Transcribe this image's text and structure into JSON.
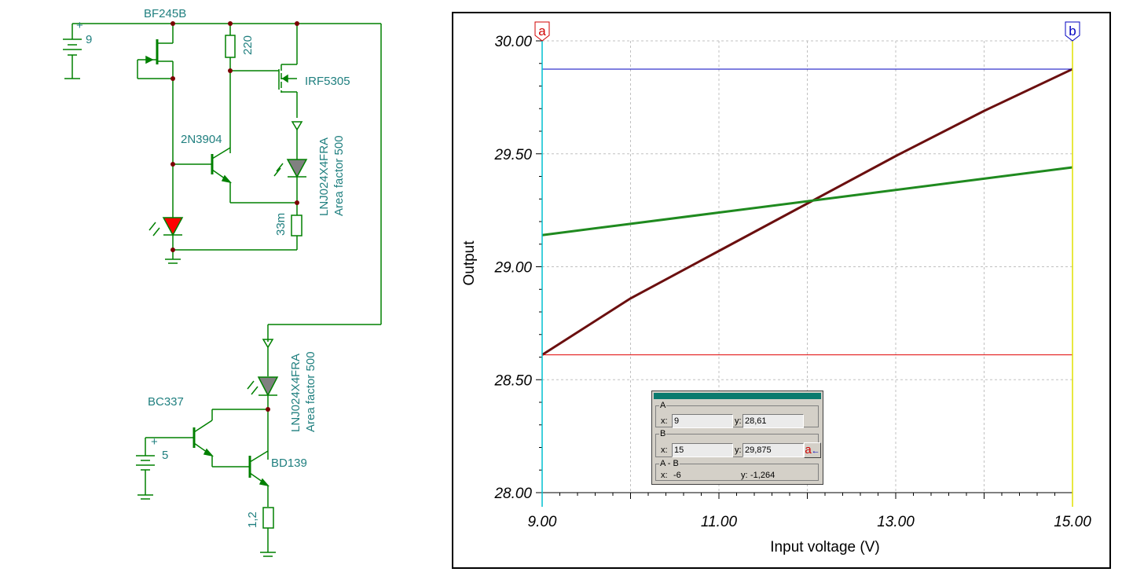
{
  "schematic": {
    "battery_top_label": "9",
    "battery_bottom_label": "5",
    "jfet_label": "BF245B",
    "resistor_top_label": "220",
    "mosfet_label": "IRF5305",
    "transistor_mid_label": "2N3904",
    "led_top_label_line1": "LNJ024X4FRA",
    "led_top_label_line2": "Area factor 500",
    "resistor_sense_label": "33m",
    "led_bottom_label_line1": "LNJ024X4FRA",
    "led_bottom_label_line2": "Area factor 500",
    "transistor_bc_label": "BC337",
    "transistor_bd_label": "BD139",
    "resistor_bottom_label": "1,2",
    "plus_sign": "+"
  },
  "plot": {
    "cursor_a_label": "a",
    "cursor_b_label": "b",
    "colors": {
      "series_1": "#6b0f0f",
      "series_2": "#1f8a1f",
      "cursor_a_line": "#00c0d0",
      "cursor_a_hline": "#e00000",
      "cursor_b_hline": "#0000c0",
      "grid": "#c0c0c0"
    }
  },
  "chart_data": {
    "type": "line",
    "title": "",
    "xlabel": "Input voltage (V)",
    "ylabel": "Output",
    "xlim": [
      9.0,
      15.0
    ],
    "ylim": [
      28.0,
      30.0
    ],
    "x_ticks": [
      "9.00",
      "11.00",
      "13.00",
      "15.00"
    ],
    "y_ticks": [
      "28.00",
      "28.50",
      "29.00",
      "29.50",
      "30.00"
    ],
    "grid": true,
    "series": [
      {
        "x": [
          9,
          10,
          11,
          12,
          13,
          14,
          15
        ],
        "values": [
          28.61,
          28.86,
          29.07,
          29.28,
          29.49,
          29.69,
          29.875
        ]
      },
      {
        "x": [
          9,
          10,
          11,
          12,
          13,
          14,
          15
        ],
        "values": [
          29.14,
          29.19,
          29.24,
          29.29,
          29.34,
          29.39,
          29.44
        ]
      }
    ],
    "cursor_a_x": 9,
    "cursor_a_y": 28.61,
    "cursor_b_x": 15,
    "cursor_b_y": 29.875
  },
  "cursor_box": {
    "group_a": "A",
    "group_b": "B",
    "group_diff": "A - B",
    "x_label": "x:",
    "y_label": "y:",
    "a_x": "9",
    "a_y": "28,61",
    "b_x": "15",
    "b_y": "29,875",
    "diff_x": "-6",
    "diff_y": "-1,264",
    "swap_button_label": "a",
    "swap_button_arrow": "←"
  }
}
